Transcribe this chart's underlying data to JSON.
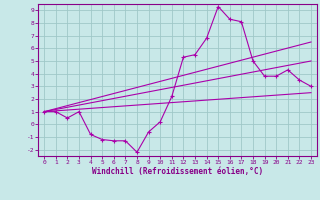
{
  "xlabel": "Windchill (Refroidissement éolien,°C)",
  "bg_color": "#c8e8e8",
  "grid_color": "#a0c8c8",
  "line_color": "#aa00aa",
  "spine_color": "#880088",
  "tick_color": "#880088",
  "label_color": "#880088",
  "xlim": [
    -0.5,
    23.5
  ],
  "ylim": [
    -2.5,
    9.5
  ],
  "xticks": [
    0,
    1,
    2,
    3,
    4,
    5,
    6,
    7,
    8,
    9,
    10,
    11,
    12,
    13,
    14,
    15,
    16,
    17,
    18,
    19,
    20,
    21,
    22,
    23
  ],
  "yticks": [
    -2,
    -1,
    0,
    1,
    2,
    3,
    4,
    5,
    6,
    7,
    8,
    9
  ],
  "series1_x": [
    0,
    1,
    2,
    3,
    4,
    5,
    6,
    7,
    8,
    9,
    10,
    11,
    12,
    13,
    14,
    15,
    16,
    17,
    18,
    19,
    20,
    21,
    22,
    23
  ],
  "series1_y": [
    1.0,
    1.0,
    0.5,
    1.0,
    -0.8,
    -1.2,
    -1.3,
    -1.3,
    -2.2,
    -0.6,
    0.2,
    2.2,
    5.3,
    5.5,
    6.8,
    9.3,
    8.3,
    8.1,
    5.0,
    3.8,
    3.8,
    4.3,
    3.5,
    3.0
  ],
  "series2_x": [
    0,
    23
  ],
  "series2_y": [
    1.0,
    2.5
  ],
  "series3_x": [
    0,
    23
  ],
  "series3_y": [
    1.0,
    6.5
  ],
  "series4_x": [
    0,
    23
  ],
  "series4_y": [
    1.0,
    5.0
  ]
}
